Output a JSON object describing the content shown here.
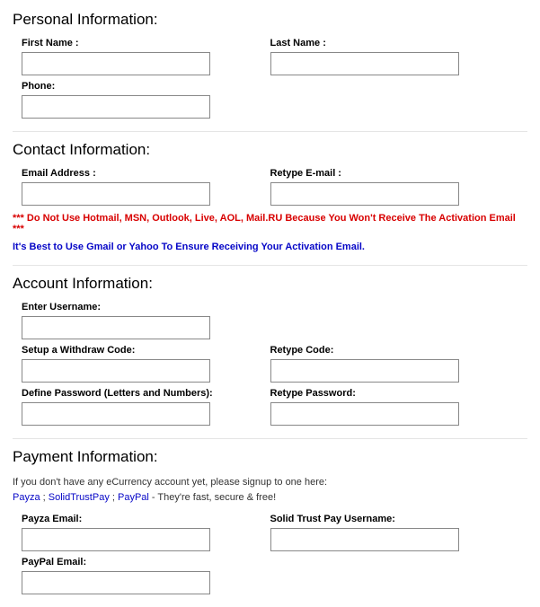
{
  "personal": {
    "title": "Personal Information:",
    "first_name_label": "First Name :",
    "last_name_label": "Last Name :",
    "phone_label": "Phone:",
    "first_name": "",
    "last_name": "",
    "phone": ""
  },
  "contact": {
    "title": "Contact Information:",
    "email_label": "Email Address :",
    "retype_email_label": "Retype E-mail :",
    "email": "",
    "retype_email": "",
    "warn": "*** Do Not Use Hotmail, MSN, Outlook, Live, AOL, Mail.RU Because You Won't Receive The Activation Email ***",
    "info": "It's Best to Use Gmail or Yahoo To Ensure Receiving Your Activation Email."
  },
  "account": {
    "title": "Account Information:",
    "username_label": "Enter Username:",
    "withdraw_label": "Setup a Withdraw Code:",
    "retype_code_label": "Retype Code:",
    "password_label": "Define Password (Letters and Numbers):",
    "retype_password_label": "Retype Password:",
    "username": "",
    "withdraw": "",
    "retype_code": "",
    "password": "",
    "retype_password": ""
  },
  "payment": {
    "title": "Payment Information:",
    "note_pre": "If you don't have any eCurrency account yet, please signup to one here:",
    "payza_link": "Payza",
    "stp_link": "SolidTrustPay",
    "paypal_link": "PayPal",
    "sep": " ; ",
    "note_post": " - They're fast, secure & free!",
    "payza_label": "Payza Email:",
    "stp_label": "Solid Trust Pay Username:",
    "paypal_label": "PayPal Email:",
    "payza": "",
    "stp": "",
    "paypal": ""
  }
}
